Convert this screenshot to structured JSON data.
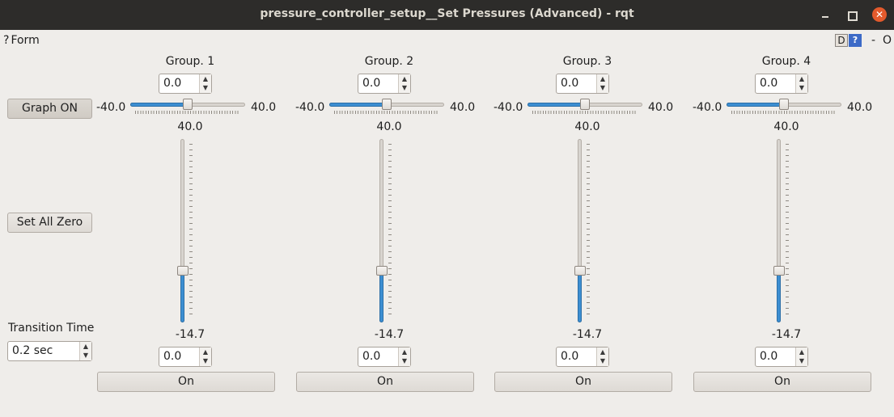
{
  "window": {
    "title": "pressure_controller_setup__Set Pressures (Advanced) - rqt",
    "close_glyph": "✕"
  },
  "menubar": {
    "form_label": "Form",
    "help_glyph": "?",
    "d_badge": "D",
    "help_badge": "?",
    "dash": "-",
    "o_label": "O"
  },
  "controls": {
    "graph_button": "Graph ON",
    "set_all_zero_button": "Set All Zero",
    "transition_time_label": "Transition Time",
    "transition_time_value": "0.2 sec"
  },
  "slider_range": {
    "min_label": "-40.0",
    "max_label": "40.0",
    "min": -40.0,
    "max": 40.0,
    "vertical_top_label": "40.0",
    "vertical_bottom_label": "-14.7",
    "vertical_min": -14.7,
    "vertical_max": 40.0
  },
  "groups": [
    {
      "title": "Group. 1",
      "setpoint": "0.0",
      "reading": "0.0",
      "value": 0.0,
      "on_label": "On"
    },
    {
      "title": "Group. 2",
      "setpoint": "0.0",
      "reading": "0.0",
      "value": 0.0,
      "on_label": "On"
    },
    {
      "title": "Group. 3",
      "setpoint": "0.0",
      "reading": "0.0",
      "value": 0.0,
      "on_label": "On"
    },
    {
      "title": "Group. 4",
      "setpoint": "0.0",
      "reading": "0.0",
      "value": 0.0,
      "on_label": "On"
    }
  ],
  "colors": {
    "accent": "#3d8fd2",
    "titlebar": "#2d2c2a",
    "close_button": "#e35a2c",
    "background": "#efedea"
  }
}
